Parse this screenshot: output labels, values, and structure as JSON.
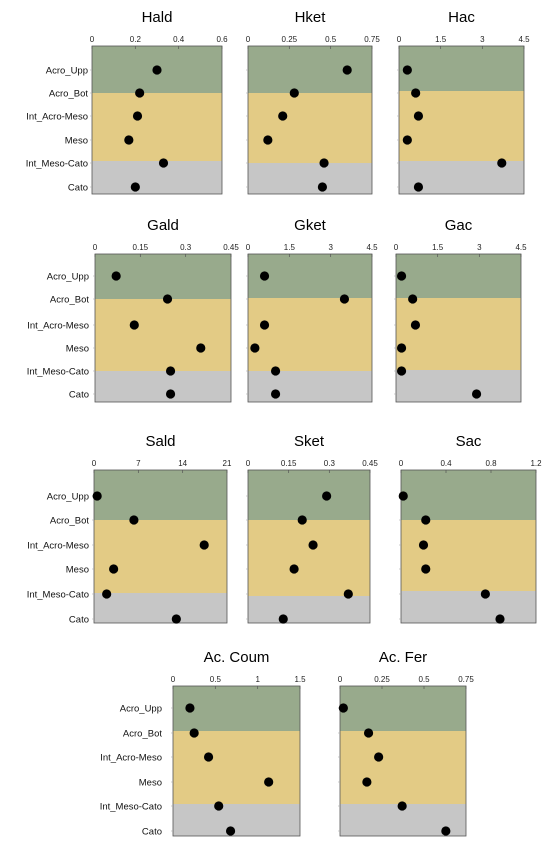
{
  "chart_data": [
    {
      "type": "scatter",
      "title": "Hald",
      "xlim": [
        0,
        0.6
      ],
      "xticks": [
        "0",
        "0.2",
        "0.4",
        "0.6"
      ],
      "categories": [
        "Acro_Upp",
        "Acro_Bot",
        "Int_Acro-Meso",
        "Meso",
        "Int_Meso-Cato",
        "Cato"
      ],
      "values": [
        0.3,
        0.22,
        0.21,
        0.17,
        0.33,
        0.2
      ]
    },
    {
      "type": "scatter",
      "title": "Hket",
      "xlim": [
        0,
        0.75
      ],
      "xticks": [
        "0",
        "0.25",
        "0.5",
        "0.75"
      ],
      "categories": [
        "Acro_Upp",
        "Acro_Bot",
        "Int_Acro-Meso",
        "Meso",
        "Int_Meso-Cato",
        "Cato"
      ],
      "values": [
        0.6,
        0.28,
        0.21,
        0.12,
        0.46,
        0.45
      ]
    },
    {
      "type": "scatter",
      "title": "Hac",
      "xlim": [
        0,
        4.5
      ],
      "xticks": [
        "0",
        "1.5",
        "3",
        "4.5"
      ],
      "categories": [
        "Acro_Upp",
        "Acro_Bot",
        "Int_Acro-Meso",
        "Meso",
        "Int_Meso-Cato",
        "Cato"
      ],
      "values": [
        0.3,
        0.6,
        0.7,
        0.3,
        3.7,
        0.7
      ]
    },
    {
      "type": "scatter",
      "title": "Gald",
      "xlim": [
        0,
        0.45
      ],
      "xticks": [
        "0",
        "0.15",
        "0.3",
        "0.45"
      ],
      "categories": [
        "Acro_Upp",
        "Acro_Bot",
        "Int_Acro-Meso",
        "Meso",
        "Int_Meso-Cato",
        "Cato"
      ],
      "values": [
        0.07,
        0.24,
        0.13,
        0.35,
        0.25,
        0.25
      ]
    },
    {
      "type": "scatter",
      "title": "Gket",
      "xlim": [
        0,
        4.5
      ],
      "xticks": [
        "0",
        "1.5",
        "3",
        "4.5"
      ],
      "categories": [
        "Acro_Upp",
        "Acro_Bot",
        "Int_Acro-Meso",
        "Meso",
        "Int_Meso-Cato",
        "Cato"
      ],
      "values": [
        0.6,
        3.5,
        0.6,
        0.25,
        1.0,
        1.0
      ]
    },
    {
      "type": "scatter",
      "title": "Gac",
      "xlim": [
        0,
        4.5
      ],
      "xticks": [
        "0",
        "1.5",
        "3",
        "4.5"
      ],
      "categories": [
        "Acro_Upp",
        "Acro_Bot",
        "Int_Acro-Meso",
        "Meso",
        "Int_Meso-Cato",
        "Cato"
      ],
      "values": [
        0.2,
        0.6,
        0.7,
        0.2,
        0.2,
        2.9
      ]
    },
    {
      "type": "scatter",
      "title": "Sald",
      "xlim": [
        0,
        21
      ],
      "xticks": [
        "0",
        "7",
        "14",
        "21"
      ],
      "categories": [
        "Acro_Upp",
        "Acro_Bot",
        "Int_Acro-Meso",
        "Meso",
        "Int_Meso-Cato",
        "Cato"
      ],
      "values": [
        0.5,
        6.3,
        17.4,
        3.1,
        2.0,
        13.0
      ]
    },
    {
      "type": "scatter",
      "title": "Sket",
      "xlim": [
        0,
        0.45
      ],
      "xticks": [
        "0",
        "0.15",
        "0.3",
        "0.45"
      ],
      "categories": [
        "Acro_Upp",
        "Acro_Bot",
        "Int_Acro-Meso",
        "Meso",
        "Int_Meso-Cato",
        "Cato"
      ],
      "values": [
        0.29,
        0.2,
        0.24,
        0.17,
        0.37,
        0.13
      ]
    },
    {
      "type": "scatter",
      "title": "Sac",
      "xlim": [
        0,
        1.2
      ],
      "xticks": [
        "0",
        "0.4",
        "0.8",
        "1.2"
      ],
      "categories": [
        "Acro_Upp",
        "Acro_Bot",
        "Int_Acro-Meso",
        "Meso",
        "Int_Meso-Cato",
        "Cato"
      ],
      "values": [
        0.02,
        0.22,
        0.2,
        0.22,
        0.75,
        0.88
      ]
    },
    {
      "type": "scatter",
      "title": "Ac. Coum",
      "xlim": [
        0,
        1.5
      ],
      "xticks": [
        "0",
        "0.5",
        "1",
        "1.5"
      ],
      "categories": [
        "Acro_Upp",
        "Acro_Bot",
        "Int_Acro-Meso",
        "Meso",
        "Int_Meso-Cato",
        "Cato"
      ],
      "values": [
        0.2,
        0.25,
        0.42,
        1.13,
        0.54,
        0.68
      ]
    },
    {
      "type": "scatter",
      "title": "Ac. Fer",
      "xlim": [
        0,
        0.75
      ],
      "xticks": [
        "0",
        "0.25",
        "0.5",
        "0.75"
      ],
      "categories": [
        "Acro_Upp",
        "Acro_Bot",
        "Int_Acro-Meso",
        "Meso",
        "Int_Meso-Cato",
        "Cato"
      ],
      "values": [
        0.02,
        0.17,
        0.23,
        0.16,
        0.37,
        0.63
      ]
    }
  ],
  "colors": {
    "acro": "#98aa8c",
    "meso": "#e3cb85",
    "cato": "#c6c6c6",
    "point": "#000000",
    "frame": "#555555"
  }
}
